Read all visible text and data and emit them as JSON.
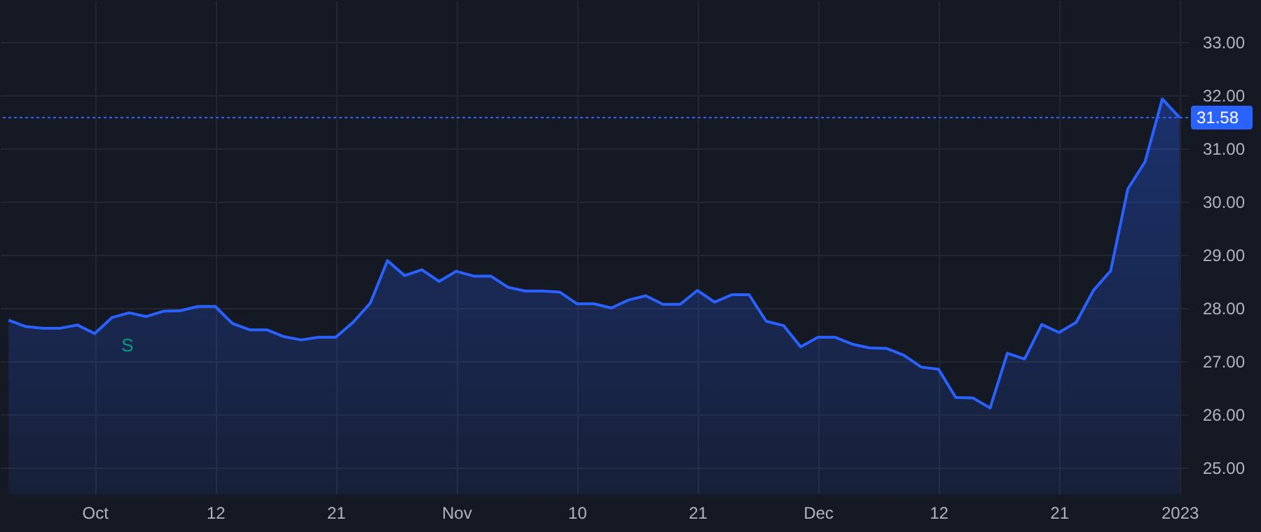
{
  "chart_data": {
    "type": "area",
    "categories": [
      null,
      null,
      null,
      null,
      null,
      "Oct",
      null,
      null,
      null,
      null,
      null,
      null,
      "12",
      null,
      null,
      null,
      null,
      null,
      null,
      "21",
      null,
      null,
      null,
      null,
      null,
      null,
      "Nov",
      null,
      null,
      null,
      null,
      null,
      null,
      "10",
      null,
      null,
      null,
      null,
      null,
      null,
      "21",
      null,
      null,
      null,
      null,
      null,
      null,
      "Dec",
      null,
      null,
      null,
      null,
      null,
      null,
      "12",
      null,
      null,
      null,
      null,
      null,
      null,
      "21",
      null,
      null,
      null,
      null,
      null,
      null,
      "2023"
    ],
    "series": [
      {
        "color": "#2962ff",
        "values": [
          27.77,
          27.65,
          27.62,
          27.62,
          27.68,
          27.52,
          27.82,
          27.91,
          27.84,
          27.94,
          27.95,
          28.03,
          28.03,
          27.71,
          27.59,
          27.59,
          27.46,
          27.4,
          27.45,
          27.45,
          27.73,
          28.09,
          28.89,
          28.61,
          28.72,
          28.5,
          28.69,
          28.6,
          28.6,
          28.39,
          28.32,
          28.32,
          28.3,
          28.08,
          28.08,
          28.0,
          28.15,
          28.23,
          28.07,
          28.07,
          28.33,
          28.11,
          28.25,
          28.25,
          27.75,
          27.67,
          27.27,
          27.45,
          27.45,
          27.32,
          27.25,
          27.24,
          27.11,
          26.89,
          26.85,
          26.32,
          26.31,
          26.12,
          27.15,
          27.04,
          27.69,
          27.54,
          27.73,
          28.33,
          28.7,
          30.24,
          30.75,
          31.93,
          31.58
        ]
      }
    ],
    "ylim": [
      24.5,
      33.79
    ],
    "yticks": [
      {
        "value": 25,
        "label": "25.00"
      },
      {
        "value": 26,
        "label": "26.00"
      },
      {
        "value": 27,
        "label": "27.00"
      },
      {
        "value": 28,
        "label": "28.00"
      },
      {
        "value": 29,
        "label": "29.00"
      },
      {
        "value": 30,
        "label": "30.00"
      },
      {
        "value": 31,
        "label": "31.00"
      },
      {
        "value": 32,
        "label": "32.00"
      },
      {
        "value": 33,
        "label": "33.00"
      }
    ],
    "ref_lines": [
      {
        "axis": "y",
        "value": 31.58,
        "label": "31.58",
        "color": "#2962ff",
        "line_style": "dotted"
      }
    ],
    "annotations": [
      "S"
    ],
    "grid": true,
    "marker": "none",
    "line_style": "solid"
  }
}
